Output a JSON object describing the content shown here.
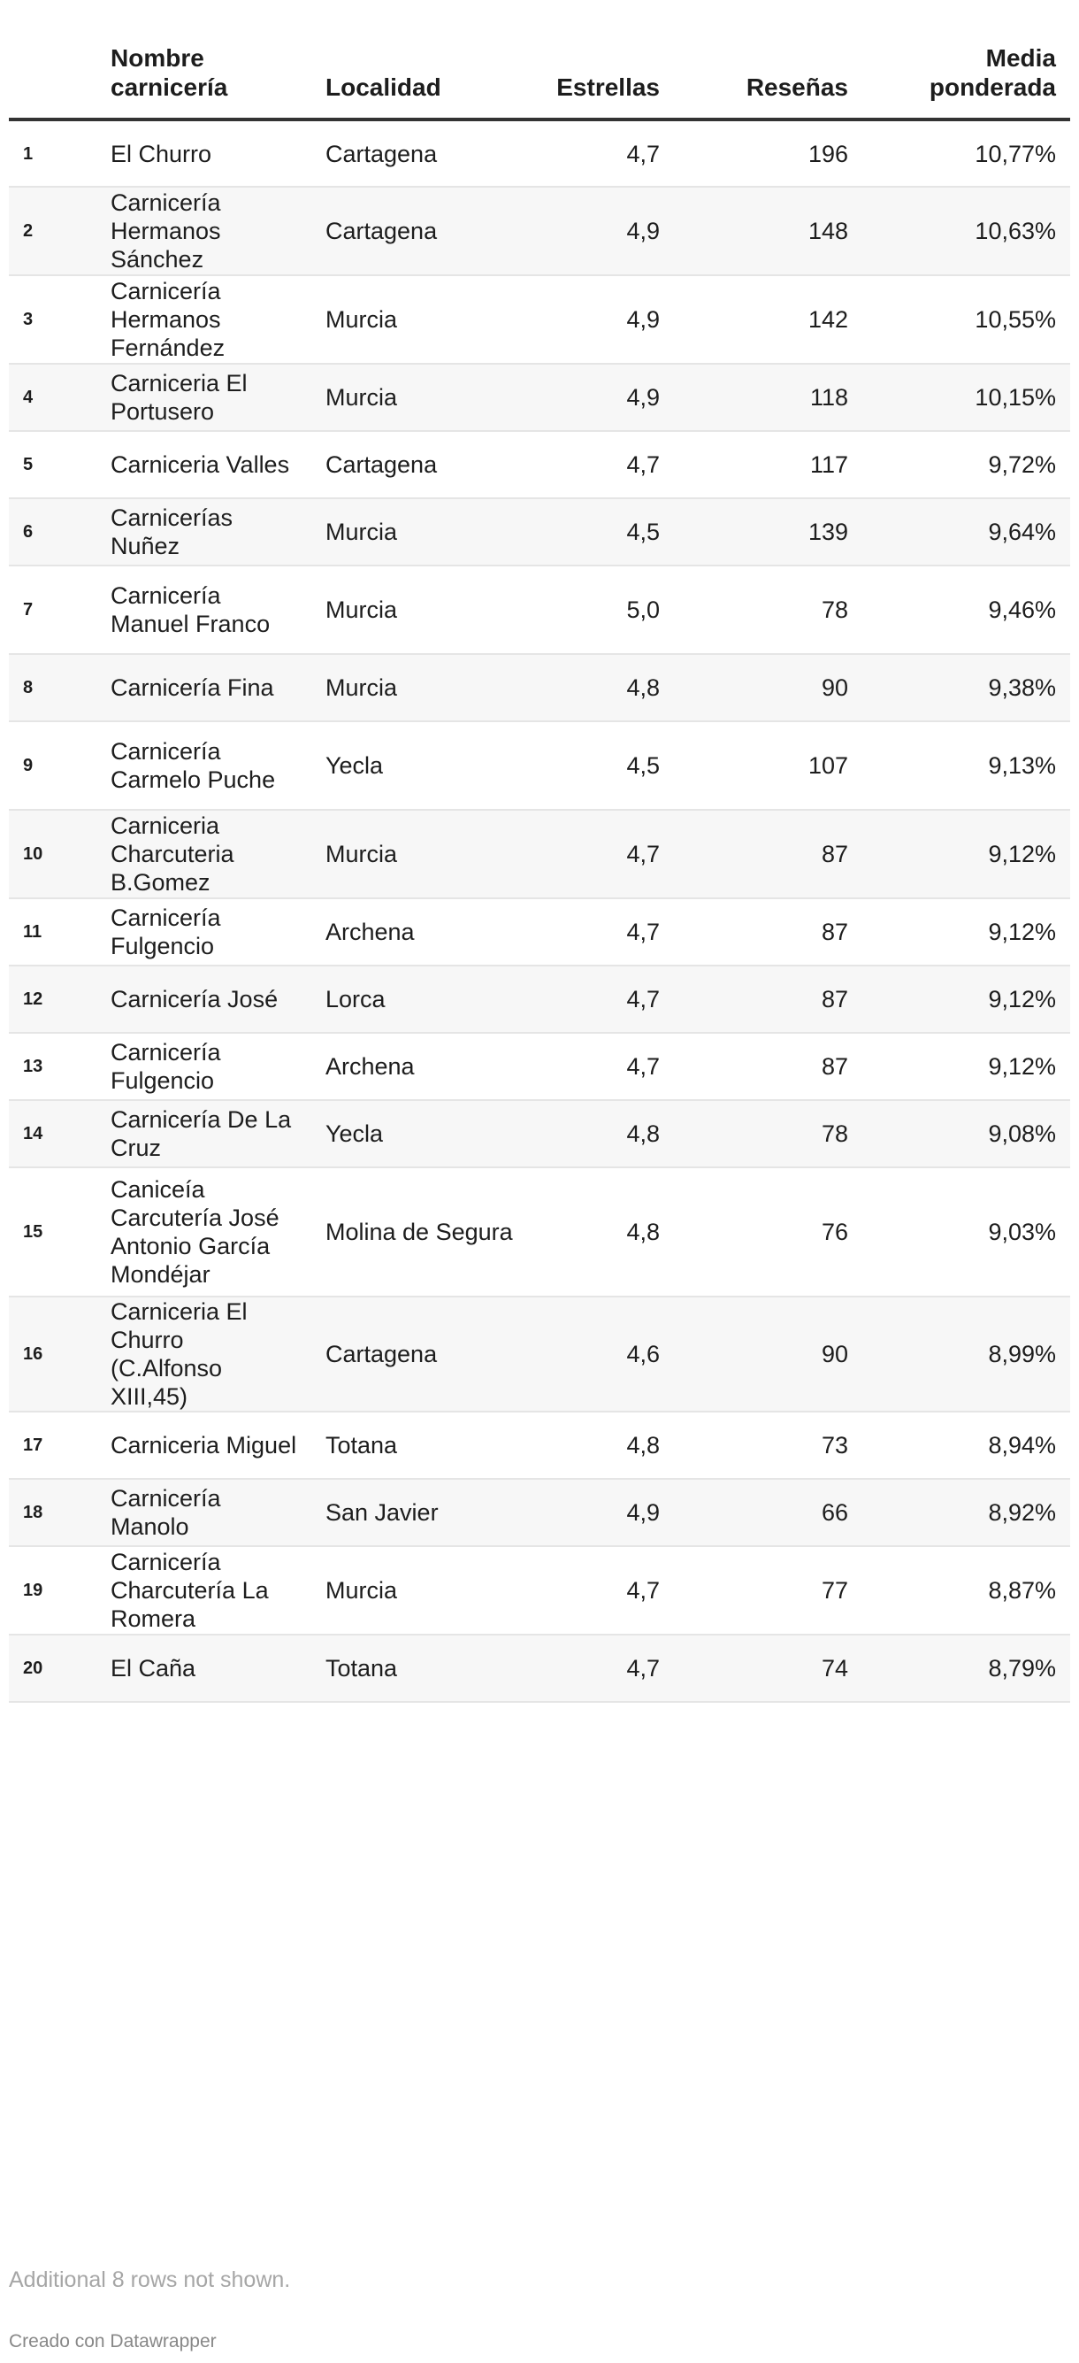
{
  "chart_data": {
    "type": "table",
    "columns": [
      "",
      "Nombre carnicería",
      "Localidad",
      "Estrellas",
      "Reseñas",
      "Media ponderada"
    ],
    "rows": [
      {
        "rank": "1",
        "name": "El Churro",
        "place": "Cartagena",
        "stars": "4,7",
        "reviews": "196",
        "weighted": "10,77%"
      },
      {
        "rank": "2",
        "name": "Carnicería Hermanos Sánchez",
        "place": "Cartagena",
        "stars": "4,9",
        "reviews": "148",
        "weighted": "10,63%"
      },
      {
        "rank": "3",
        "name": "Carnicería Hermanos Fernández",
        "place": "Murcia",
        "stars": "4,9",
        "reviews": "142",
        "weighted": "10,55%"
      },
      {
        "rank": "4",
        "name": "Carniceria El Portusero",
        "place": "Murcia",
        "stars": "4,9",
        "reviews": "118",
        "weighted": "10,15%"
      },
      {
        "rank": "5",
        "name": "Carniceria Valles",
        "place": "Cartagena",
        "stars": "4,7",
        "reviews": "117",
        "weighted": "9,72%"
      },
      {
        "rank": "6",
        "name": "Carnicerías Nuñez",
        "place": "Murcia",
        "stars": "4,5",
        "reviews": "139",
        "weighted": "9,64%"
      },
      {
        "rank": "7",
        "name": "Carnicería Manuel Franco",
        "place": "Murcia",
        "stars": "5,0",
        "reviews": "78",
        "weighted": "9,46%"
      },
      {
        "rank": "8",
        "name": "Carnicería Fina",
        "place": "Murcia",
        "stars": "4,8",
        "reviews": "90",
        "weighted": "9,38%"
      },
      {
        "rank": "9",
        "name": "Carnicería Carmelo Puche",
        "place": "Yecla",
        "stars": "4,5",
        "reviews": "107",
        "weighted": "9,13%"
      },
      {
        "rank": "10",
        "name": "Carniceria Charcuteria B.Gomez",
        "place": "Murcia",
        "stars": "4,7",
        "reviews": "87",
        "weighted": "9,12%"
      },
      {
        "rank": "11",
        "name": "Carnicería Fulgencio",
        "place": "Archena",
        "stars": "4,7",
        "reviews": "87",
        "weighted": "9,12%"
      },
      {
        "rank": "12",
        "name": "Carnicería José",
        "place": "Lorca",
        "stars": "4,7",
        "reviews": "87",
        "weighted": "9,12%"
      },
      {
        "rank": "13",
        "name": "Carnicería Fulgencio",
        "place": "Archena",
        "stars": "4,7",
        "reviews": "87",
        "weighted": "9,12%"
      },
      {
        "rank": "14",
        "name": "Carnicería De La Cruz",
        "place": "Yecla",
        "stars": "4,8",
        "reviews": "78",
        "weighted": "9,08%"
      },
      {
        "rank": "15",
        "name": "Caniceía Carcutería José Antonio García Mondéjar",
        "place": "Molina de Segura",
        "stars": "4,8",
        "reviews": "76",
        "weighted": "9,03%"
      },
      {
        "rank": "16",
        "name": "Carniceria El Churro (C.Alfonso XIII,45)",
        "place": "Cartagena",
        "stars": "4,6",
        "reviews": "90",
        "weighted": "8,99%"
      },
      {
        "rank": "17",
        "name": "Carniceria Miguel",
        "place": "Totana",
        "stars": "4,8",
        "reviews": "73",
        "weighted": "8,94%"
      },
      {
        "rank": "18",
        "name": "Carnicería Manolo",
        "place": "San Javier",
        "stars": "4,9",
        "reviews": "66",
        "weighted": "8,92%"
      },
      {
        "rank": "19",
        "name": "Carnicería Charcutería La Romera",
        "place": "Murcia",
        "stars": "4,7",
        "reviews": "77",
        "weighted": "8,87%"
      },
      {
        "rank": "20",
        "name": "El Caña",
        "place": "Totana",
        "stars": "4,7",
        "reviews": "74",
        "weighted": "8,79%"
      }
    ],
    "more_rows_note": "Additional 8 rows not shown.",
    "credit": "Creado con Datawrapper"
  }
}
